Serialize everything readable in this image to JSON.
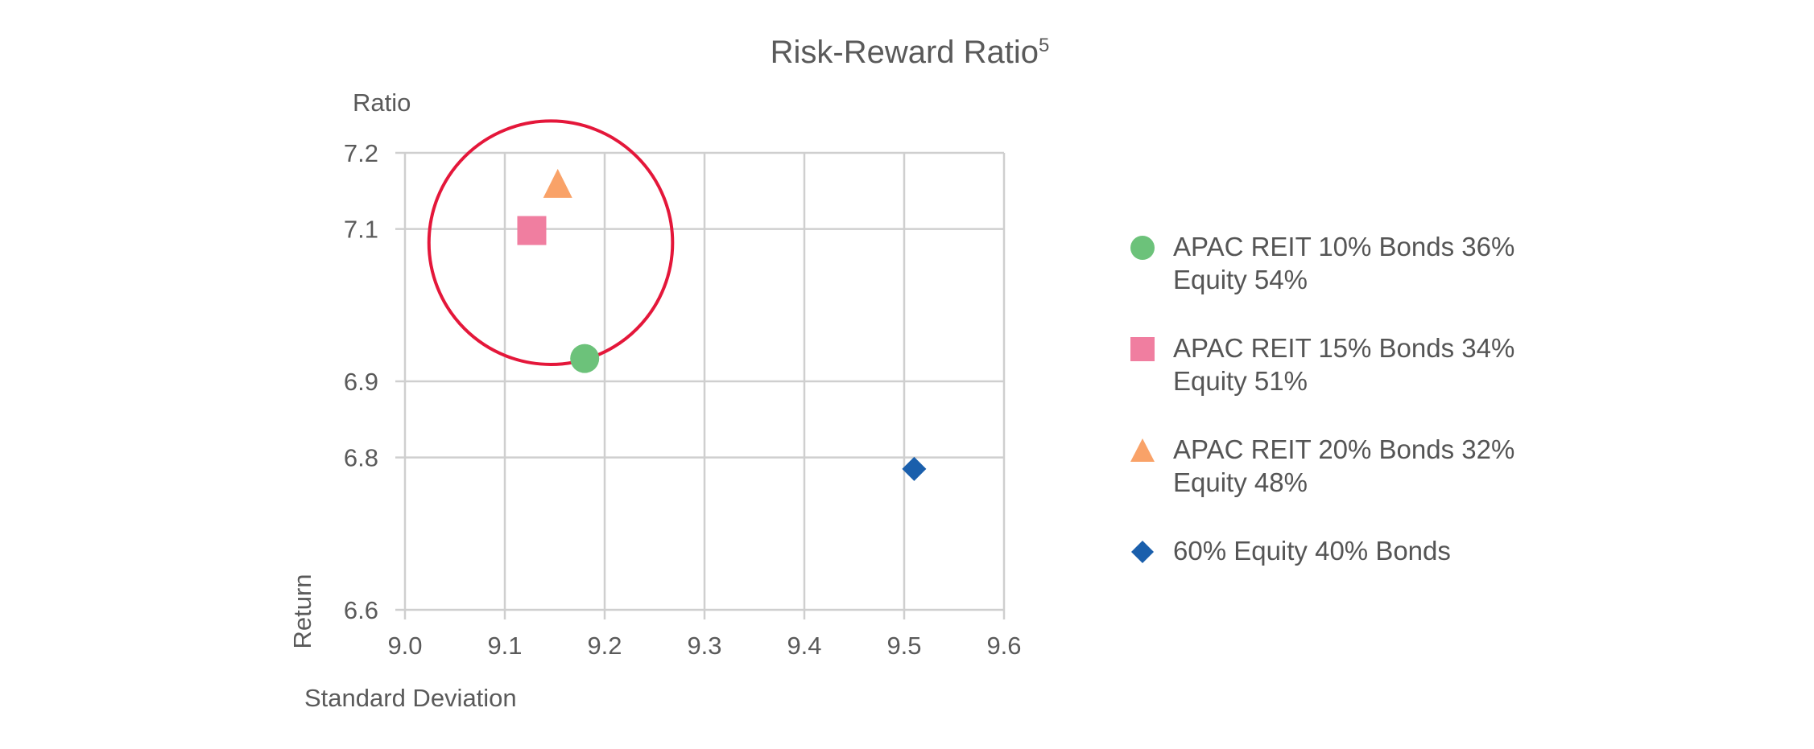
{
  "chart_data": {
    "type": "scatter",
    "title": "Risk-Reward Ratio",
    "title_superscript": "5",
    "ylabel_top": "Ratio",
    "ylabel": "Return",
    "xlabel": "Standard Deviation",
    "xlim": [
      9.0,
      9.6
    ],
    "ylim": [
      6.6,
      7.2
    ],
    "x_ticks": [
      "9.0",
      "9.1",
      "9.2",
      "9.3",
      "9.4",
      "9.5",
      "9.6"
    ],
    "y_ticks": [
      "7.2",
      "7.1",
      "6.9",
      "6.8",
      "6.6"
    ],
    "grid": true,
    "legend_position": "right",
    "series": [
      {
        "name": "APAC REIT 10% Bonds 36% Equity 54%",
        "marker": "circle",
        "color": "#6cc27a",
        "x": 9.18,
        "y": 6.93
      },
      {
        "name": "APAC REIT 15% Bonds 34% Equity 51%",
        "marker": "square",
        "color": "#f07ea0",
        "x": 9.127,
        "y": 7.098
      },
      {
        "name": "APAC REIT 20% Bonds 32% Equity 48%",
        "marker": "triangle",
        "color": "#f9a268",
        "x": 9.153,
        "y": 7.16
      },
      {
        "name": "60% Equity 40% Bonds",
        "marker": "diamond",
        "color": "#1a5fac",
        "x": 9.51,
        "y": 6.785
      }
    ],
    "annotations": [
      {
        "type": "circle-highlight",
        "color": "#e4173a",
        "center_x": 9.146,
        "center_y": 7.082,
        "radius_x": 0.122,
        "label": ""
      }
    ]
  },
  "legend": {
    "items": [
      {
        "line1": "APAC REIT 10% Bonds 36%",
        "line2": "Equity 54%",
        "marker": "circle",
        "color": "#6cc27a"
      },
      {
        "line1": "APAC REIT 15% Bonds 34%",
        "line2": "Equity 51%",
        "marker": "square",
        "color": "#f07ea0"
      },
      {
        "line1": "APAC REIT 20% Bonds 32%",
        "line2": "Equity 48%",
        "marker": "triangle",
        "color": "#f9a268"
      },
      {
        "line1": "60% Equity 40% Bonds",
        "line2": "",
        "marker": "diamond",
        "color": "#1a5fac"
      }
    ]
  }
}
